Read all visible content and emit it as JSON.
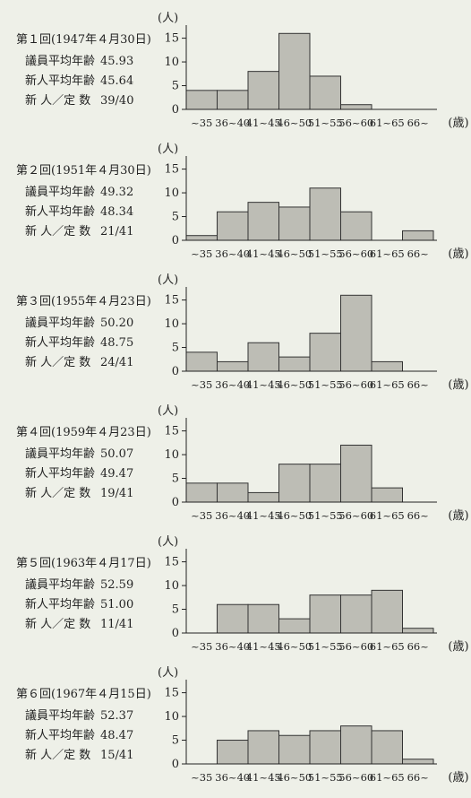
{
  "chart_data": [
    {
      "type": "bar",
      "title": "第１回(1947年４月30日)",
      "ylabel": "(人)",
      "xlabel": "(歳)",
      "ylim": [
        0,
        17
      ],
      "yticks": [
        "15",
        "10",
        "5",
        "0"
      ],
      "categories": [
        "~35",
        "36~40",
        "41~45",
        "46~50",
        "51~55",
        "56~60",
        "61~65",
        "66~"
      ],
      "values": [
        4,
        4,
        8,
        16,
        7,
        1,
        0,
        0
      ],
      "stats": [
        {
          "label": "議員平均年齢",
          "value": "45.93"
        },
        {
          "label": "新人平均年齢",
          "value": "45.64"
        },
        {
          "label": "新 人／定 数",
          "value": "39/40"
        }
      ]
    },
    {
      "type": "bar",
      "title": "第２回(1951年４月30日)",
      "ylabel": "(人)",
      "xlabel": "(歳)",
      "ylim": [
        0,
        17
      ],
      "yticks": [
        "15",
        "10",
        "5",
        "0"
      ],
      "categories": [
        "~35",
        "36~40",
        "41~45",
        "46~50",
        "51~55",
        "56~60",
        "61~65",
        "66~"
      ],
      "values": [
        1,
        6,
        8,
        7,
        11,
        6,
        0,
        2
      ],
      "stats": [
        {
          "label": "議員平均年齢",
          "value": "49.32"
        },
        {
          "label": "新人平均年齢",
          "value": "48.34"
        },
        {
          "label": "新 人／定 数",
          "value": "21/41"
        }
      ]
    },
    {
      "type": "bar",
      "title": "第３回(1955年４月23日)",
      "ylabel": "(人)",
      "xlabel": "(歳)",
      "ylim": [
        0,
        17
      ],
      "yticks": [
        "15",
        "10",
        "5",
        "0"
      ],
      "categories": [
        "~35",
        "36~40",
        "41~45",
        "46~50",
        "51~55",
        "56~60",
        "61~65",
        "66~"
      ],
      "values": [
        4,
        2,
        6,
        3,
        8,
        16,
        2,
        0
      ],
      "stats": [
        {
          "label": "議員平均年齢",
          "value": "50.20"
        },
        {
          "label": "新人平均年齢",
          "value": "48.75"
        },
        {
          "label": "新 人／定 数",
          "value": "24/41"
        }
      ]
    },
    {
      "type": "bar",
      "title": "第４回(1959年４月23日)",
      "ylabel": "(人)",
      "xlabel": "(歳)",
      "ylim": [
        0,
        17
      ],
      "yticks": [
        "15",
        "10",
        "5",
        "0"
      ],
      "categories": [
        "~35",
        "36~40",
        "41~45",
        "46~50",
        "51~55",
        "56~60",
        "61~65",
        "66~"
      ],
      "values": [
        4,
        4,
        2,
        8,
        8,
        12,
        3,
        0
      ],
      "stats": [
        {
          "label": "議員平均年齢",
          "value": "50.07"
        },
        {
          "label": "新人平均年齢",
          "value": "49.47"
        },
        {
          "label": "新 人／定 数",
          "value": "19/41"
        }
      ]
    },
    {
      "type": "bar",
      "title": "第５回(1963年４月17日)",
      "ylabel": "(人)",
      "xlabel": "(歳)",
      "ylim": [
        0,
        17
      ],
      "yticks": [
        "15",
        "10",
        "5",
        "0"
      ],
      "categories": [
        "~35",
        "36~40",
        "41~45",
        "46~50",
        "51~55",
        "56~60",
        "61~65",
        "66~"
      ],
      "values": [
        0,
        6,
        6,
        3,
        8,
        8,
        9,
        1
      ],
      "stats": [
        {
          "label": "議員平均年齢",
          "value": "52.59"
        },
        {
          "label": "新人平均年齢",
          "value": "51.00"
        },
        {
          "label": "新 人／定 数",
          "value": "11/41"
        }
      ]
    },
    {
      "type": "bar",
      "title": "第６回(1967年４月15日)",
      "ylabel": "(人)",
      "xlabel": "(歳)",
      "ylim": [
        0,
        17
      ],
      "yticks": [
        "15",
        "10",
        "5",
        "0"
      ],
      "categories": [
        "~35",
        "36~40",
        "41~45",
        "46~50",
        "51~55",
        "56~60",
        "61~65",
        "66~"
      ],
      "values": [
        0,
        5,
        7,
        6,
        7,
        8,
        7,
        1
      ],
      "stats": [
        {
          "label": "議員平均年齢",
          "value": "52.37"
        },
        {
          "label": "新人平均年齢",
          "value": "48.47"
        },
        {
          "label": "新 人／定 数",
          "value": "15/41"
        }
      ]
    }
  ],
  "colors": {
    "bar_fill": "#bdbdb5",
    "bar_stroke": "#333333",
    "axis": "#222222",
    "background": "#eef0e8"
  }
}
